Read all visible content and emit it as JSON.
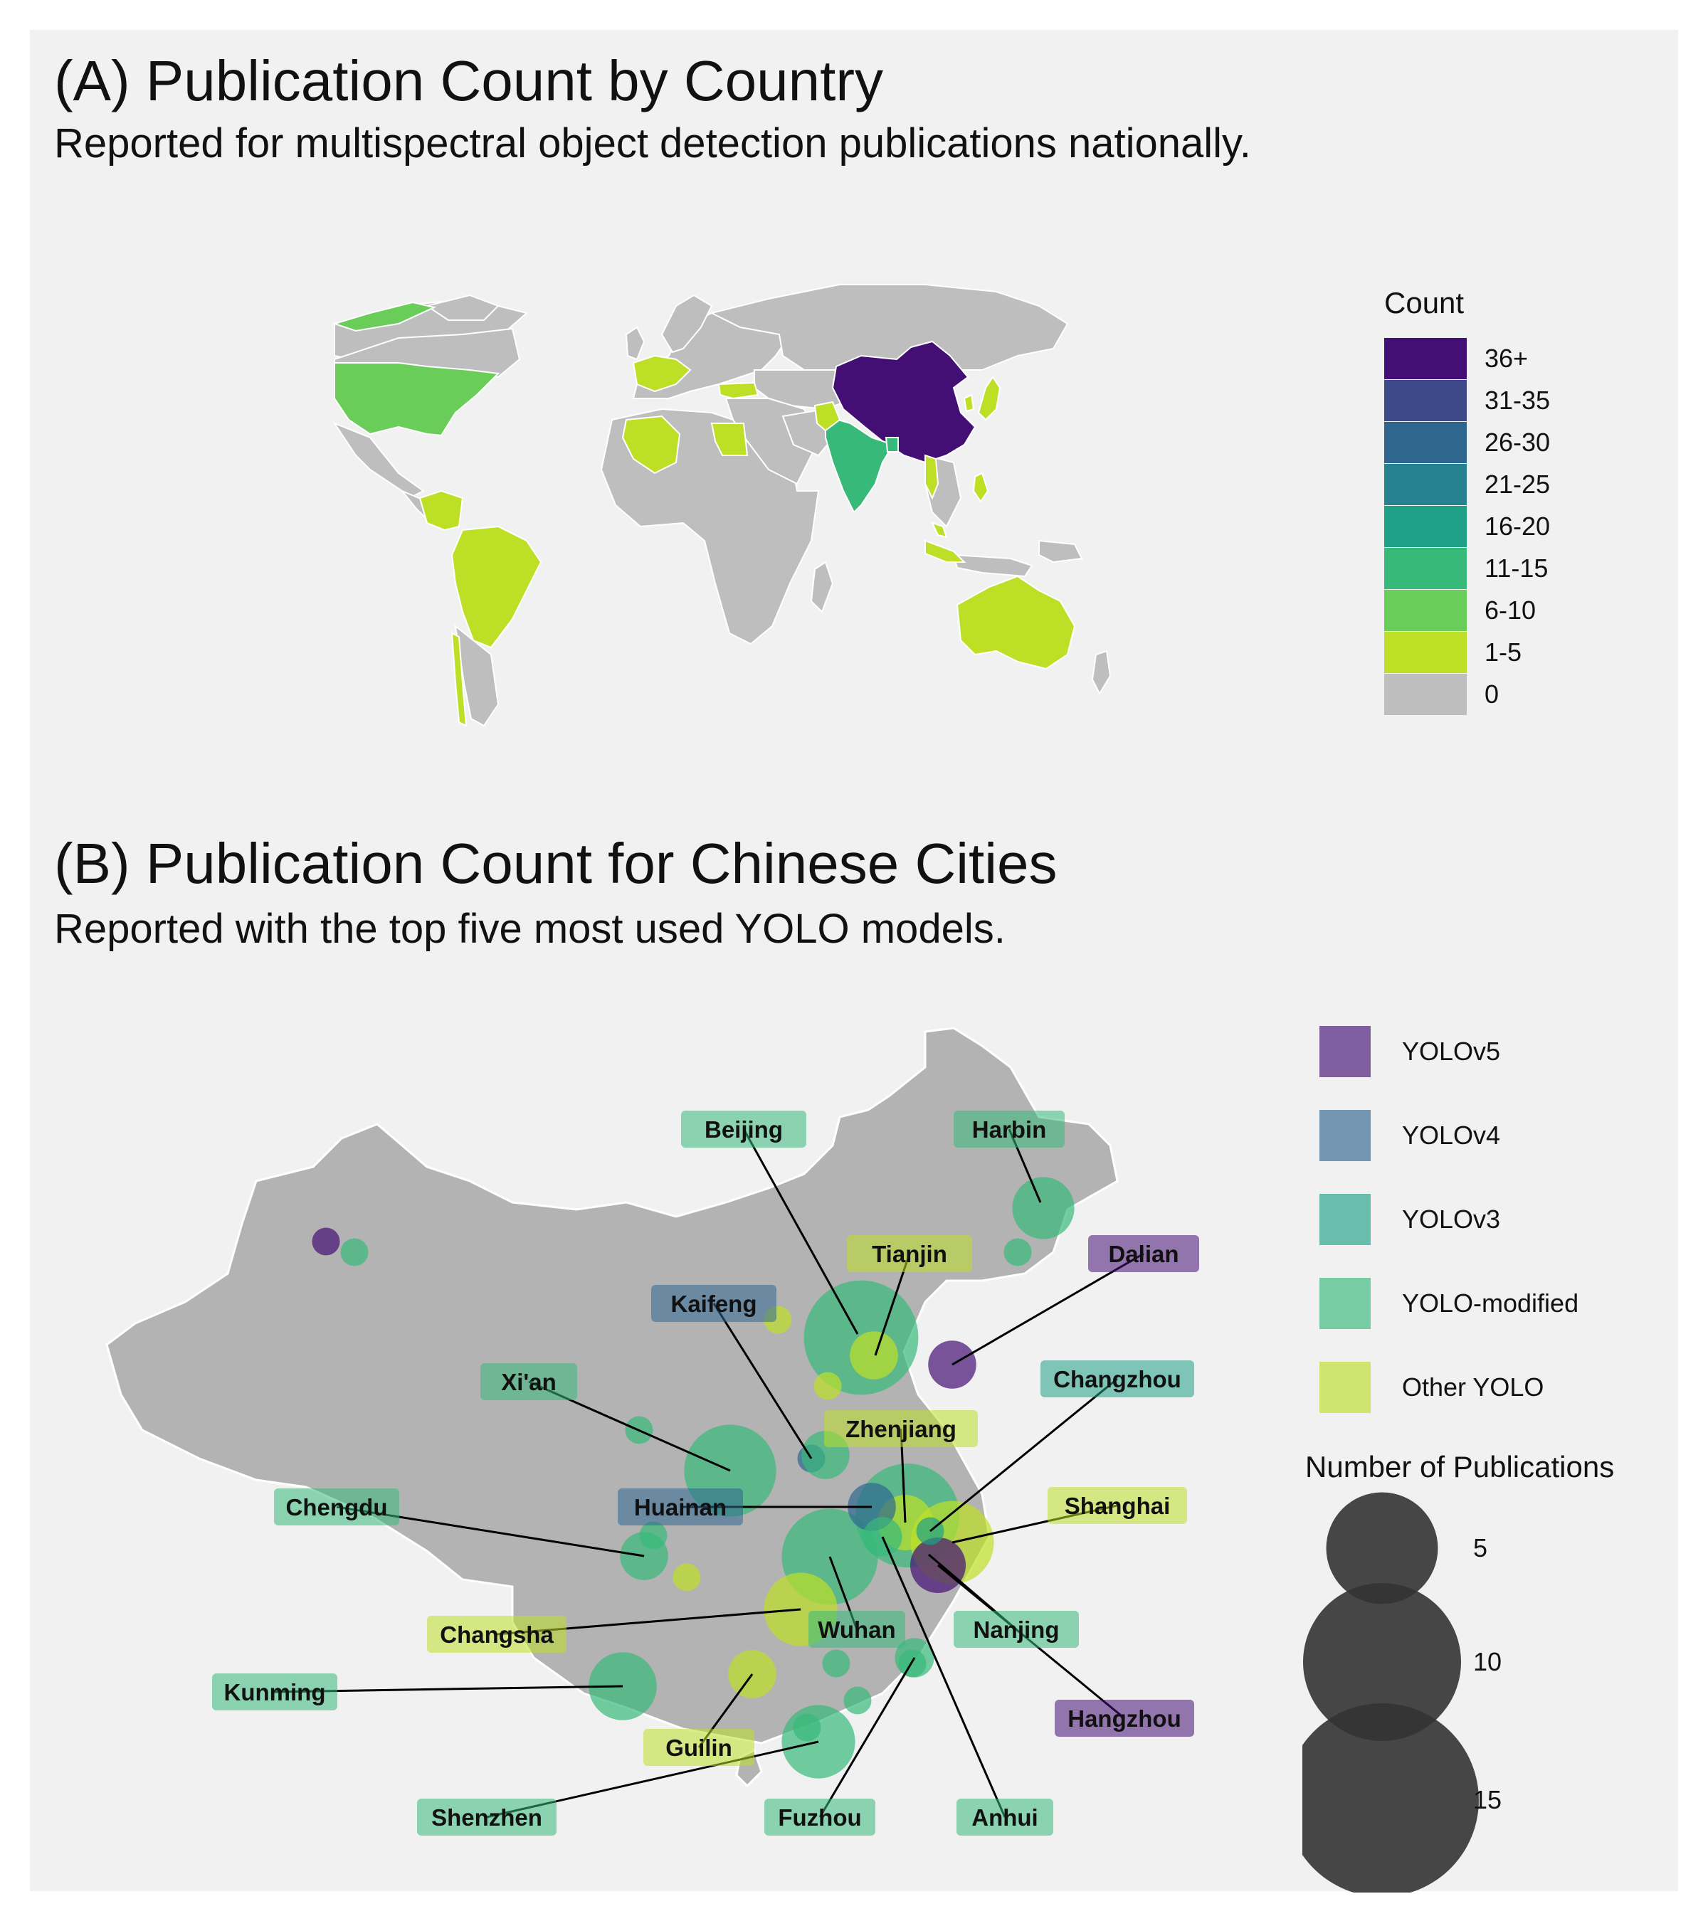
{
  "panel_a": {
    "title": "(A) Publication Count by Country",
    "subtitle": "Reported for multispectral object detection publications nationally.",
    "legend_title": "Count",
    "legend": [
      {
        "label": "36+",
        "color": "#440f74"
      },
      {
        "label": "31-35",
        "color": "#3d4a89"
      },
      {
        "label": "26-30",
        "color": "#2f6690"
      },
      {
        "label": "21-25",
        "color": "#25828e"
      },
      {
        "label": "16-20",
        "color": "#1fa187"
      },
      {
        "label": "11-15",
        "color": "#37b97a"
      },
      {
        "label": "6-10",
        "color": "#6bcd59"
      },
      {
        "label": "1-5",
        "color": "#bddf26"
      },
      {
        "label": "0",
        "color": "#bebebe"
      }
    ],
    "countries": [
      {
        "name": "China",
        "bin": "36+"
      },
      {
        "name": "India",
        "bin": "11-15"
      },
      {
        "name": "United States",
        "bin": "6-10"
      },
      {
        "name": "Greenland",
        "bin": "6-10"
      },
      {
        "name": "Brazil",
        "bin": "1-5"
      },
      {
        "name": "Colombia",
        "bin": "1-5"
      },
      {
        "name": "Australia",
        "bin": "1-5"
      },
      {
        "name": "Algeria",
        "bin": "1-5"
      },
      {
        "name": "Egypt",
        "bin": "1-5"
      },
      {
        "name": "Turkey",
        "bin": "1-5"
      },
      {
        "name": "Pakistan",
        "bin": "1-5"
      },
      {
        "name": "Japan",
        "bin": "1-5"
      },
      {
        "name": "South Korea",
        "bin": "1-5"
      },
      {
        "name": "Philippines",
        "bin": "1-5"
      },
      {
        "name": "Indonesia",
        "bin": "1-5"
      },
      {
        "name": "Malaysia",
        "bin": "1-5"
      },
      {
        "name": "Vietnam",
        "bin": "1-5"
      },
      {
        "name": "Bangladesh",
        "bin": "11-15"
      },
      {
        "name": "Chile",
        "bin": "1-5"
      },
      {
        "name": "Europe (several)",
        "bin": "1-5"
      }
    ]
  },
  "panel_b": {
    "title": "(B) Publication Count for Chinese Cities",
    "subtitle": "Reported with the top five most used YOLO models.",
    "model_legend": [
      {
        "label": "YOLOv5",
        "color": "#440f74"
      },
      {
        "label": "YOLOv4",
        "color": "#2f6690"
      },
      {
        "label": "YOLOv3",
        "color": "#1fa187"
      },
      {
        "label": "YOLO-modified",
        "color": "#37b97a"
      },
      {
        "label": "Other YOLO",
        "color": "#bddf26"
      }
    ],
    "size_legend_title": "Number of Publications",
    "size_legend": [
      5,
      10,
      15
    ],
    "cities": [
      {
        "name": "Beijing",
        "model": "YOLO-modified",
        "count": 17
      },
      {
        "name": "Harbin",
        "model": "YOLO-modified",
        "count": 5
      },
      {
        "name": "Tianjin",
        "model": "Other YOLO",
        "count": 3
      },
      {
        "name": "Dalian",
        "model": "YOLOv5",
        "count": 3
      },
      {
        "name": "Kaifeng",
        "model": "YOLOv4",
        "count": 1
      },
      {
        "name": "Xi'an",
        "model": "YOLO-modified",
        "count": 11
      },
      {
        "name": "Changzhou",
        "model": "YOLOv3",
        "count": 1
      },
      {
        "name": "Zhenjiang",
        "model": "Other YOLO",
        "count": 4
      },
      {
        "name": "Huainan",
        "model": "YOLOv4",
        "count": 3
      },
      {
        "name": "Chengdu",
        "model": "YOLO-modified",
        "count": 3
      },
      {
        "name": "Shanghai",
        "model": "Other YOLO",
        "count": 9
      },
      {
        "name": "Changsha",
        "model": "Other YOLO",
        "count": 7
      },
      {
        "name": "Wuhan",
        "model": "YOLO-modified",
        "count": 12
      },
      {
        "name": "Nanjing",
        "model": "YOLO-modified",
        "count": 14
      },
      {
        "name": "Hangzhou",
        "model": "YOLOv5",
        "count": 4
      },
      {
        "name": "Kunming",
        "model": "YOLO-modified",
        "count": 6
      },
      {
        "name": "Guilin",
        "model": "Other YOLO",
        "count": 3
      },
      {
        "name": "Fuzhou",
        "model": "YOLO-modified",
        "count": 2
      },
      {
        "name": "Anhui",
        "model": "YOLO-modified",
        "count": 2
      },
      {
        "name": "Shenzhen",
        "model": "YOLO-modified",
        "count": 7
      }
    ]
  }
}
